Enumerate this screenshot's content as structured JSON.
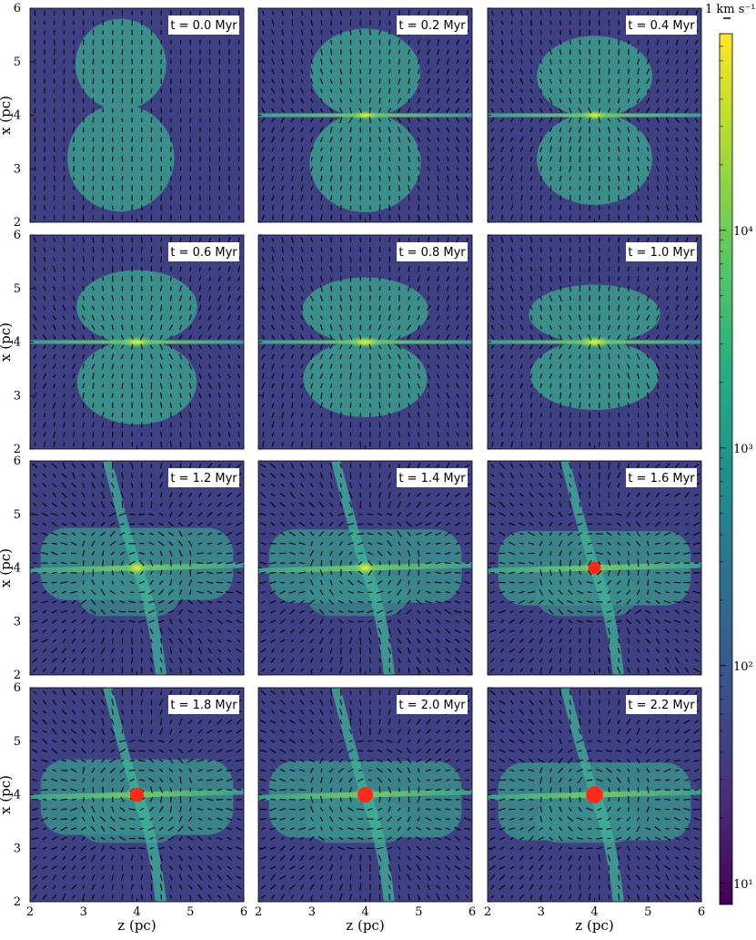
{
  "chart_data": {
    "type": "heatmap",
    "title": "",
    "xlabel": "z (pc)",
    "ylabel": "x (pc)",
    "xlim": [
      2,
      6
    ],
    "ylim": [
      2,
      6
    ],
    "xticks": [
      "2",
      "3",
      "4",
      "5",
      "6"
    ],
    "yticks": [
      "2",
      "3",
      "4",
      "5",
      "6"
    ],
    "grid": false,
    "colormap": "viridis",
    "colorbar": {
      "scale": "log",
      "range": [
        8,
        80000
      ],
      "ticks": [
        "10^1",
        "10^2",
        "10^3",
        "10^4"
      ],
      "tick_values": [
        10,
        100,
        1000,
        10000
      ]
    },
    "vector_key": {
      "label": "1 km s⁻¹"
    },
    "panels": [
      {
        "t": "t = 0.0 Myr",
        "time_myr": 0.0,
        "sink": false
      },
      {
        "t": "t = 0.2 Myr",
        "time_myr": 0.2,
        "sink": false
      },
      {
        "t": "t = 0.4 Myr",
        "time_myr": 0.4,
        "sink": false
      },
      {
        "t": "t = 0.6 Myr",
        "time_myr": 0.6,
        "sink": false
      },
      {
        "t": "t = 0.8 Myr",
        "time_myr": 0.8,
        "sink": false
      },
      {
        "t": "t = 1.0 Myr",
        "time_myr": 1.0,
        "sink": false
      },
      {
        "t": "t = 1.2 Myr",
        "time_myr": 1.2,
        "sink": false
      },
      {
        "t": "t = 1.4 Myr",
        "time_myr": 1.4,
        "sink": false
      },
      {
        "t": "t = 1.6 Myr",
        "time_myr": 1.6,
        "sink": true
      },
      {
        "t": "t = 1.8 Myr",
        "time_myr": 1.8,
        "sink": true
      },
      {
        "t": "t = 2.0 Myr",
        "time_myr": 2.0,
        "sink": true
      },
      {
        "t": "t = 2.2 Myr",
        "time_myr": 2.2,
        "sink": true
      }
    ],
    "colors": {
      "background_low": "#3f3f84",
      "cloud": "#3a8f8c",
      "filament": "#3fb39a",
      "core": "#d9e83a",
      "sink": "#ff2a1a",
      "arrow": "#000000"
    }
  }
}
